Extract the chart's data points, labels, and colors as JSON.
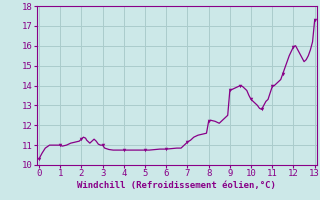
{
  "xlabel": "Windchill (Refroidissement éolien,°C)",
  "background_color": "#cce8e8",
  "grid_color": "#aacccc",
  "line_color": "#880088",
  "marker_color": "#880088",
  "xlim": [
    -0.1,
    13.1
  ],
  "ylim": [
    10.0,
    18.0
  ],
  "xticks": [
    0,
    1,
    2,
    3,
    4,
    5,
    6,
    7,
    8,
    9,
    10,
    11,
    12,
    13
  ],
  "yticks": [
    10,
    11,
    12,
    13,
    14,
    15,
    16,
    17,
    18
  ],
  "x": [
    0.0,
    0.15,
    0.3,
    0.5,
    0.7,
    0.9,
    1.0,
    1.1,
    1.3,
    1.5,
    1.7,
    1.9,
    2.0,
    2.1,
    2.2,
    2.25,
    2.3,
    2.4,
    2.5,
    2.6,
    2.7,
    2.8,
    2.9,
    3.0,
    3.1,
    3.3,
    3.5,
    3.7,
    4.0,
    4.2,
    4.5,
    4.7,
    5.0,
    5.2,
    5.5,
    5.7,
    6.0,
    6.2,
    6.5,
    6.7,
    7.0,
    7.15,
    7.3,
    7.5,
    7.7,
    7.9,
    8.0,
    8.1,
    8.3,
    8.5,
    8.7,
    8.9,
    9.0,
    9.1,
    9.2,
    9.3,
    9.4,
    9.5,
    9.6,
    9.7,
    9.8,
    9.9,
    10.0,
    10.1,
    10.2,
    10.3,
    10.4,
    10.5,
    10.6,
    10.7,
    10.8,
    11.0,
    11.1,
    11.2,
    11.3,
    11.4,
    11.5,
    11.6,
    11.7,
    11.8,
    12.0,
    12.1,
    12.2,
    12.3,
    12.4,
    12.5,
    12.6,
    12.7,
    12.8,
    12.9,
    13.0
  ],
  "y": [
    10.3,
    10.6,
    10.85,
    11.0,
    11.0,
    11.0,
    11.0,
    10.95,
    11.0,
    11.1,
    11.15,
    11.2,
    11.3,
    11.4,
    11.35,
    11.25,
    11.2,
    11.1,
    11.2,
    11.3,
    11.2,
    11.05,
    11.0,
    11.0,
    10.85,
    10.78,
    10.75,
    10.75,
    10.75,
    10.75,
    10.75,
    10.75,
    10.75,
    10.75,
    10.78,
    10.8,
    10.8,
    10.82,
    10.85,
    10.85,
    11.15,
    11.25,
    11.4,
    11.5,
    11.55,
    11.6,
    12.2,
    12.25,
    12.2,
    12.1,
    12.3,
    12.5,
    13.75,
    13.8,
    13.85,
    13.9,
    13.95,
    14.0,
    13.95,
    13.85,
    13.75,
    13.5,
    13.3,
    13.2,
    13.1,
    13.0,
    12.85,
    12.8,
    13.0,
    13.2,
    13.3,
    13.95,
    14.0,
    14.1,
    14.2,
    14.3,
    14.6,
    14.9,
    15.2,
    15.5,
    15.95,
    16.0,
    15.8,
    15.6,
    15.4,
    15.2,
    15.3,
    15.5,
    15.8,
    16.2,
    17.3
  ],
  "marker_x": [
    0.0,
    1.0,
    2.0,
    3.0,
    4.0,
    5.0,
    6.0,
    7.0,
    8.0,
    9.0,
    9.5,
    10.0,
    10.5,
    11.0,
    11.5,
    12.0,
    13.0
  ],
  "marker_y": [
    10.3,
    11.0,
    11.3,
    11.0,
    10.75,
    10.75,
    10.8,
    11.15,
    12.2,
    13.75,
    14.0,
    13.3,
    12.8,
    13.95,
    14.6,
    15.95,
    17.3
  ]
}
